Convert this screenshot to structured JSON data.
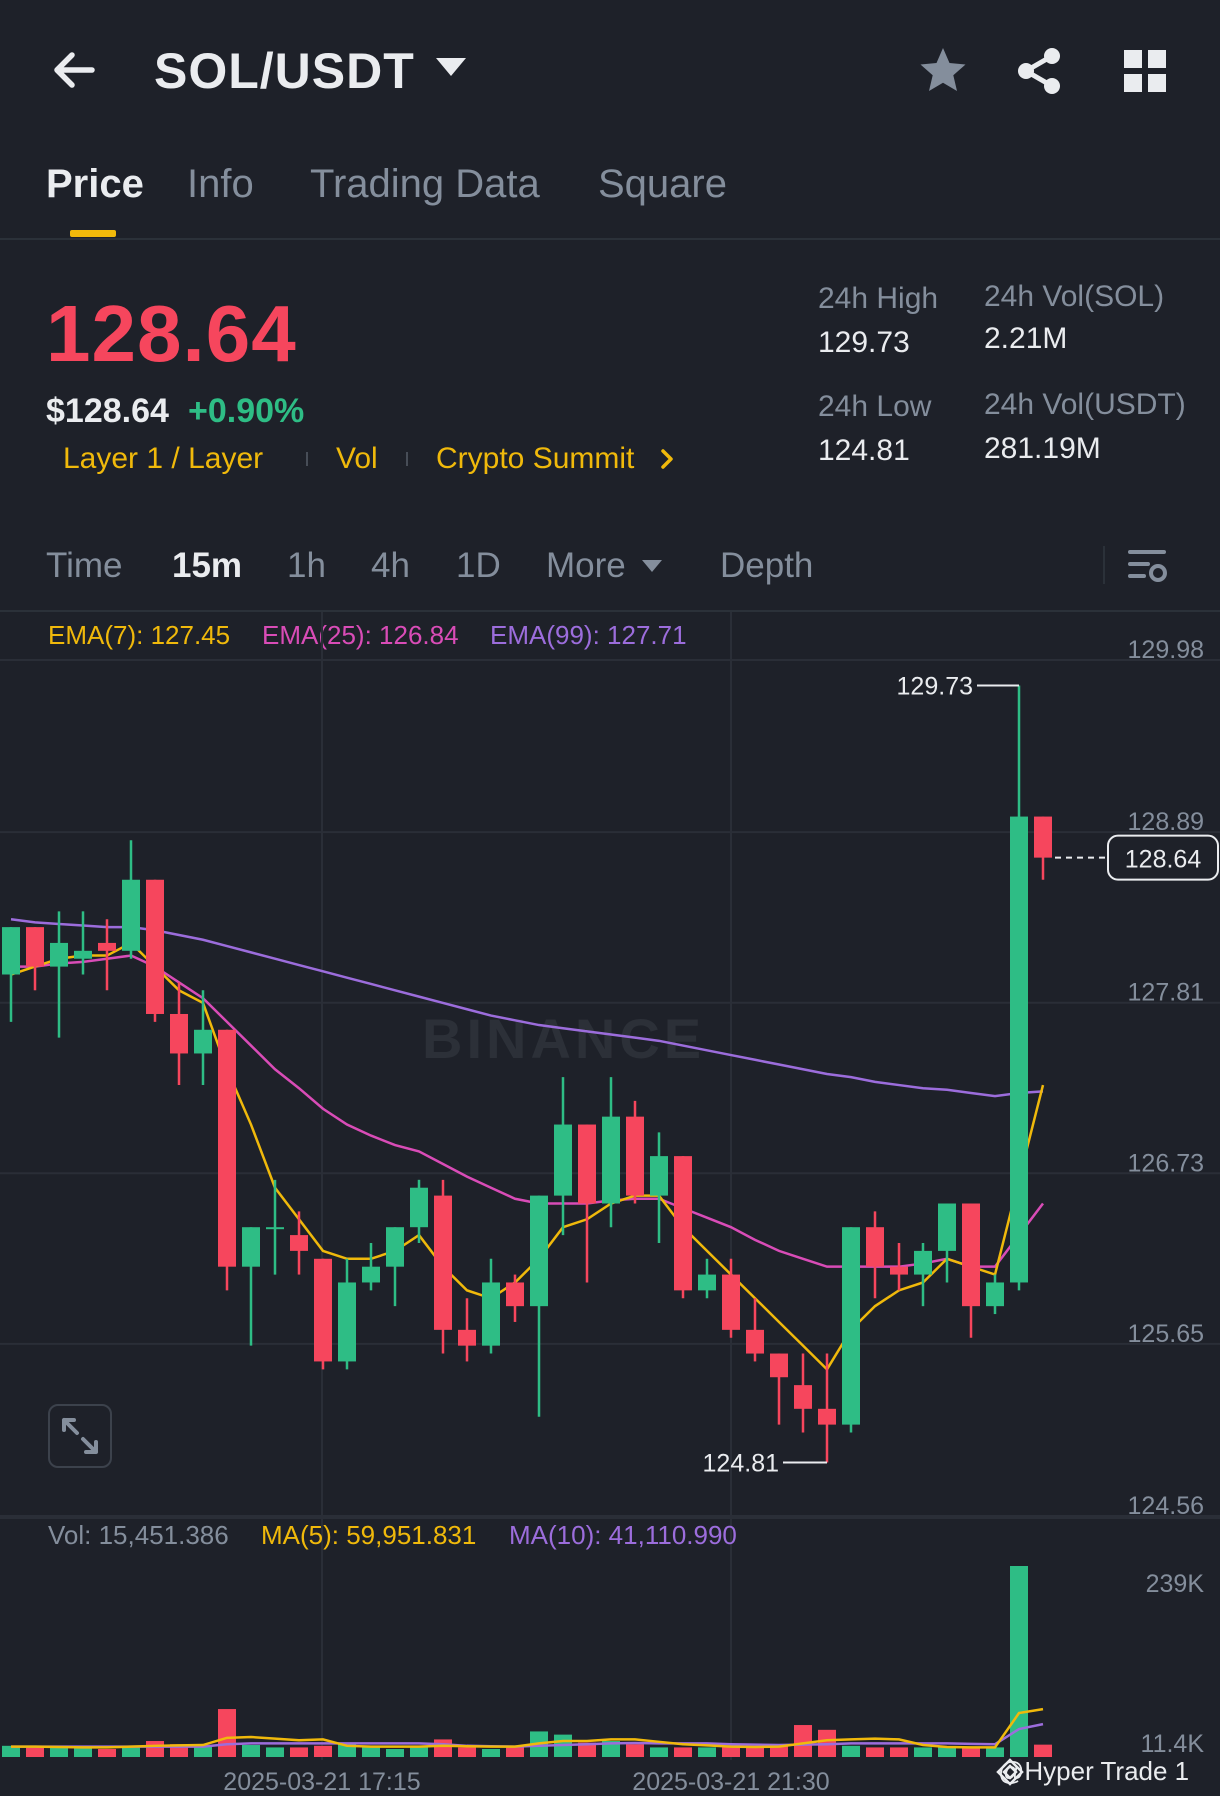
{
  "header": {
    "pair": "SOL/USDT",
    "icons": [
      "back-arrow-icon",
      "chevron-down-icon",
      "star-icon",
      "share-icon",
      "grid-icon"
    ]
  },
  "tabs": [
    "Price",
    "Info",
    "Trading Data",
    "Square"
  ],
  "ticker": {
    "last_price": "128.64",
    "usd_price": "$128.64",
    "change": "+0.90%",
    "tags": [
      "Layer 1 / Layer",
      "Vol",
      "Crypto Summit"
    ],
    "stats": {
      "high_label": "24h High",
      "high": "129.73",
      "low_label": "24h Low",
      "low": "124.81",
      "vol_sol_label": "24h Vol(SOL)",
      "vol_sol": "2.21M",
      "vol_usdt_label": "24h Vol(USDT)",
      "vol_usdt": "281.19M"
    }
  },
  "timeframes": {
    "items": [
      "Time",
      "15m",
      "1h",
      "4h",
      "1D",
      "More",
      "Depth"
    ],
    "active": "15m"
  },
  "indicators": {
    "ema7": "EMA(7): 127.45",
    "ema25": "EMA(25): 126.84",
    "ema99": "EMA(99): 127.71",
    "vol": "Vol: 15,451.386",
    "ma5": "MA(5): 59,951.831",
    "ma10": "MA(10): 41,110.990"
  },
  "colors": {
    "up": "#2ebd85",
    "down": "#f6465d",
    "ema7": "#f0b90b",
    "ema25": "#d94cb7",
    "ema99": "#9c6ddc",
    "accent": "#f0b90b"
  },
  "watermark": "BINANCE",
  "credit": "@Hyper Trade 1",
  "chart_data": {
    "type": "candlestick",
    "ylim": [
      124.56,
      129.98
    ],
    "price_ticks": [
      "129.98",
      "128.89",
      "127.81",
      "126.73",
      "125.65",
      "124.56"
    ],
    "current_price": 128.64,
    "current_price_label": "128.64",
    "high_marker": {
      "value": 129.73,
      "label": "129.73"
    },
    "low_marker": {
      "value": 124.81,
      "label": "124.81"
    },
    "x_labels": [
      "2025-03-21 17:15",
      "2025-03-21 21:30"
    ],
    "candles": [
      {
        "o": 127.9,
        "h": 128.2,
        "l": 127.6,
        "c": 128.2
      },
      {
        "o": 128.2,
        "h": 128.2,
        "l": 127.8,
        "c": 127.95
      },
      {
        "o": 127.95,
        "h": 128.3,
        "l": 127.5,
        "c": 128.1
      },
      {
        "o": 128.0,
        "h": 128.3,
        "l": 127.9,
        "c": 128.05
      },
      {
        "o": 128.1,
        "h": 128.25,
        "l": 127.8,
        "c": 128.05
      },
      {
        "o": 128.05,
        "h": 128.75,
        "l": 128.0,
        "c": 128.5
      },
      {
        "o": 128.5,
        "h": 128.5,
        "l": 127.6,
        "c": 127.65
      },
      {
        "o": 127.65,
        "h": 127.85,
        "l": 127.2,
        "c": 127.4
      },
      {
        "o": 127.4,
        "h": 127.8,
        "l": 127.2,
        "c": 127.55
      },
      {
        "o": 127.55,
        "h": 127.55,
        "l": 125.9,
        "c": 126.05
      },
      {
        "o": 126.05,
        "h": 126.3,
        "l": 125.55,
        "c": 126.3
      },
      {
        "o": 126.3,
        "h": 126.6,
        "l": 126.0,
        "c": 126.3
      },
      {
        "o": 126.25,
        "h": 126.4,
        "l": 126.0,
        "c": 126.15
      },
      {
        "o": 126.1,
        "h": 126.1,
        "l": 125.4,
        "c": 125.45
      },
      {
        "o": 125.45,
        "h": 126.1,
        "l": 125.4,
        "c": 125.95
      },
      {
        "o": 125.95,
        "h": 126.2,
        "l": 125.9,
        "c": 126.05
      },
      {
        "o": 126.05,
        "h": 126.3,
        "l": 125.8,
        "c": 126.3
      },
      {
        "o": 126.3,
        "h": 126.6,
        "l": 126.2,
        "c": 126.55
      },
      {
        "o": 126.5,
        "h": 126.6,
        "l": 125.5,
        "c": 125.65
      },
      {
        "o": 125.65,
        "h": 125.85,
        "l": 125.45,
        "c": 125.55
      },
      {
        "o": 125.55,
        "h": 126.1,
        "l": 125.5,
        "c": 125.95
      },
      {
        "o": 125.95,
        "h": 126.0,
        "l": 125.7,
        "c": 125.8
      },
      {
        "o": 125.8,
        "h": 126.5,
        "l": 125.1,
        "c": 126.5
      },
      {
        "o": 126.5,
        "h": 127.25,
        "l": 126.25,
        "c": 126.95
      },
      {
        "o": 126.95,
        "h": 126.95,
        "l": 125.95,
        "c": 126.45
      },
      {
        "o": 126.45,
        "h": 127.25,
        "l": 126.3,
        "c": 127.0
      },
      {
        "o": 127.0,
        "h": 127.1,
        "l": 126.45,
        "c": 126.5
      },
      {
        "o": 126.5,
        "h": 126.9,
        "l": 126.2,
        "c": 126.75
      },
      {
        "o": 126.75,
        "h": 126.75,
        "l": 125.85,
        "c": 125.9
      },
      {
        "o": 125.9,
        "h": 126.1,
        "l": 125.85,
        "c": 126.0
      },
      {
        "o": 126.0,
        "h": 126.1,
        "l": 125.6,
        "c": 125.65
      },
      {
        "o": 125.65,
        "h": 125.85,
        "l": 125.45,
        "c": 125.5
      },
      {
        "o": 125.5,
        "h": 125.5,
        "l": 125.05,
        "c": 125.35
      },
      {
        "o": 125.3,
        "h": 125.5,
        "l": 125.0,
        "c": 125.15
      },
      {
        "o": 125.15,
        "h": 125.5,
        "l": 124.81,
        "c": 125.05
      },
      {
        "o": 125.05,
        "h": 126.3,
        "l": 125.0,
        "c": 126.3
      },
      {
        "o": 126.3,
        "h": 126.4,
        "l": 125.85,
        "c": 126.05
      },
      {
        "o": 126.05,
        "h": 126.2,
        "l": 125.9,
        "c": 126.0
      },
      {
        "o": 126.0,
        "h": 126.2,
        "l": 125.8,
        "c": 126.15
      },
      {
        "o": 126.15,
        "h": 126.45,
        "l": 125.95,
        "c": 126.45
      },
      {
        "o": 126.45,
        "h": 126.45,
        "l": 125.6,
        "c": 125.8
      },
      {
        "o": 125.8,
        "h": 126.0,
        "l": 125.75,
        "c": 125.95
      },
      {
        "o": 125.95,
        "h": 129.73,
        "l": 125.9,
        "c": 128.9
      },
      {
        "o": 128.9,
        "h": 128.9,
        "l": 128.5,
        "c": 128.64
      }
    ],
    "ema7": [
      127.9,
      127.95,
      128.0,
      128.02,
      128.02,
      128.1,
      127.95,
      127.8,
      127.72,
      127.3,
      126.95,
      126.55,
      126.35,
      126.15,
      126.1,
      126.1,
      126.15,
      126.25,
      126.05,
      125.9,
      125.85,
      125.95,
      126.1,
      126.3,
      126.35,
      126.45,
      126.5,
      126.5,
      126.3,
      126.15,
      126.0,
      125.85,
      125.7,
      125.55,
      125.4,
      125.65,
      125.8,
      125.9,
      125.95,
      126.1,
      126.05,
      126.0,
      126.6,
      127.2
    ],
    "ema25": [
      127.95,
      127.95,
      127.97,
      127.98,
      128.0,
      128.02,
      127.95,
      127.85,
      127.75,
      127.6,
      127.45,
      127.3,
      127.18,
      127.05,
      126.95,
      126.88,
      126.82,
      126.78,
      126.7,
      126.62,
      126.55,
      126.48,
      126.45,
      126.45,
      126.45,
      126.47,
      126.48,
      126.48,
      126.42,
      126.36,
      126.3,
      126.22,
      126.15,
      126.1,
      126.05,
      126.05,
      126.05,
      126.05,
      126.07,
      126.1,
      126.05,
      126.05,
      126.25,
      126.45
    ],
    "ema99": [
      128.25,
      128.23,
      128.22,
      128.21,
      128.2,
      128.2,
      128.18,
      128.15,
      128.12,
      128.08,
      128.04,
      128.0,
      127.96,
      127.92,
      127.88,
      127.84,
      127.8,
      127.76,
      127.72,
      127.68,
      127.64,
      127.61,
      127.58,
      127.56,
      127.54,
      127.52,
      127.5,
      127.48,
      127.45,
      127.42,
      127.39,
      127.36,
      127.33,
      127.3,
      127.27,
      127.25,
      127.22,
      127.2,
      127.18,
      127.17,
      127.15,
      127.13,
      127.15,
      127.16
    ],
    "volume_ylim": [
      0,
      239000
    ],
    "volume_ticks": [
      "239K",
      "11.4K"
    ],
    "volume": [
      14000,
      13000,
      12000,
      11000,
      10000,
      12000,
      20000,
      16000,
      14000,
      60000,
      15000,
      12000,
      12000,
      14000,
      16000,
      12000,
      10000,
      12000,
      22000,
      12000,
      10000,
      12000,
      32000,
      28000,
      18000,
      20000,
      16000,
      12000,
      12000,
      12000,
      12000,
      14000,
      14000,
      40000,
      34000,
      14000,
      12000,
      12000,
      12000,
      12000,
      12000,
      12000,
      239000,
      15451
    ],
    "ma5": [
      13000,
      13000,
      12500,
      12000,
      12000,
      13000,
      14000,
      14500,
      15000,
      24000,
      25000,
      23000,
      21000,
      22000,
      14000,
      13000,
      13000,
      13000,
      14000,
      13500,
      13000,
      13000,
      17000,
      20000,
      20000,
      22000,
      22000,
      19000,
      16000,
      14500,
      13000,
      12500,
      13000,
      17000,
      21000,
      22000,
      23000,
      22000,
      15000,
      12500,
      12000,
      12000,
      55000,
      59951
    ],
    "ma10": [
      13000,
      13000,
      13000,
      13000,
      13000,
      13000,
      13000,
      13000,
      13000,
      16000,
      17000,
      17000,
      17000,
      17000,
      17000,
      17000,
      17000,
      17000,
      16000,
      14000,
      13500,
      13000,
      14000,
      15000,
      16000,
      17000,
      17500,
      17000,
      17000,
      17000,
      16000,
      15500,
      15000,
      15500,
      16000,
      17000,
      17000,
      17000,
      17000,
      17000,
      16500,
      16000,
      35000,
      41110
    ]
  }
}
